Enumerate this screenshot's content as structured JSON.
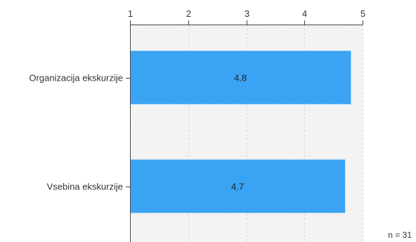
{
  "chart_data": {
    "type": "bar",
    "orientation": "horizontal",
    "categories": [
      "Organizacija ekskurzije",
      "Vsebina ekskurzije"
    ],
    "values": [
      4.8,
      4.7
    ],
    "value_labels": [
      "4.8",
      "4.7"
    ],
    "xlim": [
      1,
      5
    ],
    "x_ticks": [
      1,
      2,
      3,
      4,
      5
    ],
    "x_tick_labels": [
      "1",
      "2",
      "3",
      "4",
      "5"
    ],
    "grid": true,
    "bar_color": "#3aa3f3",
    "n_label": "n = 31"
  }
}
